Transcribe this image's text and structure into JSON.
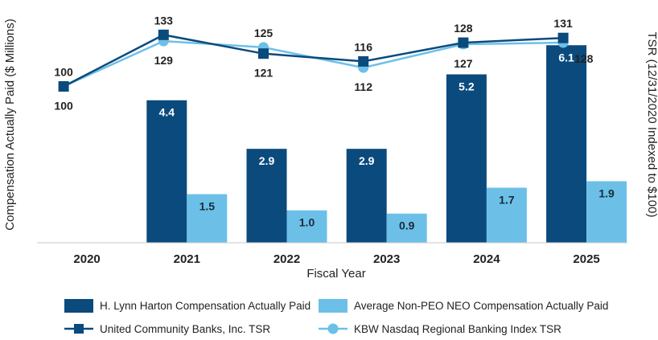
{
  "chart_data": {
    "type": "bar+line",
    "categories": [
      "2020",
      "2021",
      "2022",
      "2023",
      "2024",
      "2025"
    ],
    "xlabel": "Fiscal Year",
    "ylabel_left": "Compensation Actually Paid ($ Millions)",
    "ylabel_right": "TSR (12/31/2020 Indexed to $100)",
    "ylim_left": [
      0,
      7
    ],
    "ylim_right": [
      0,
      145
    ],
    "bar_series": [
      {
        "name": "H. Lynn Harton Compensation Actually Paid",
        "color": "#0b4a7d",
        "text_color": "#ffffff",
        "values": [
          null,
          4.4,
          2.9,
          2.9,
          5.2,
          6.1
        ],
        "labels": [
          "",
          "4.4",
          "2.9",
          "2.9",
          "5.2",
          "6.1"
        ]
      },
      {
        "name": "Average Non-PEO NEO Compensation Actually Paid",
        "color": "#6cc0e8",
        "text_color": "#1b2a3a",
        "values": [
          null,
          1.5,
          1.0,
          0.9,
          1.7,
          1.9
        ],
        "labels": [
          "",
          "1.5",
          "1.0",
          "0.9",
          "1.7",
          "1.9"
        ]
      }
    ],
    "line_series": [
      {
        "name": "United Community Banks, Inc. TSR",
        "color": "#0b4a7d",
        "marker": "square",
        "values": [
          100,
          133,
          121,
          116,
          128,
          131
        ],
        "labels": [
          "100",
          "133",
          "121",
          "116",
          "128",
          "131"
        ],
        "label_pos": [
          "above",
          "above",
          "below",
          "above",
          "above",
          "above"
        ]
      },
      {
        "name": "KBW Nasdaq Regional Banking Index TSR",
        "color": "#6cc0e8",
        "marker": "circle",
        "values": [
          100,
          129,
          125,
          112,
          127,
          128
        ],
        "labels": [
          "100",
          "129",
          "125",
          "112",
          "127",
          "128"
        ],
        "label_pos": [
          "below",
          "below",
          "above",
          "below",
          "below",
          "right"
        ]
      }
    ]
  },
  "legend": {
    "items": [
      "H. Lynn Harton Compensation Actually Paid",
      "Average Non-PEO NEO Compensation Actually Paid",
      "United Community Banks, Inc. TSR",
      "KBW Nasdaq Regional Banking Index TSR"
    ]
  }
}
